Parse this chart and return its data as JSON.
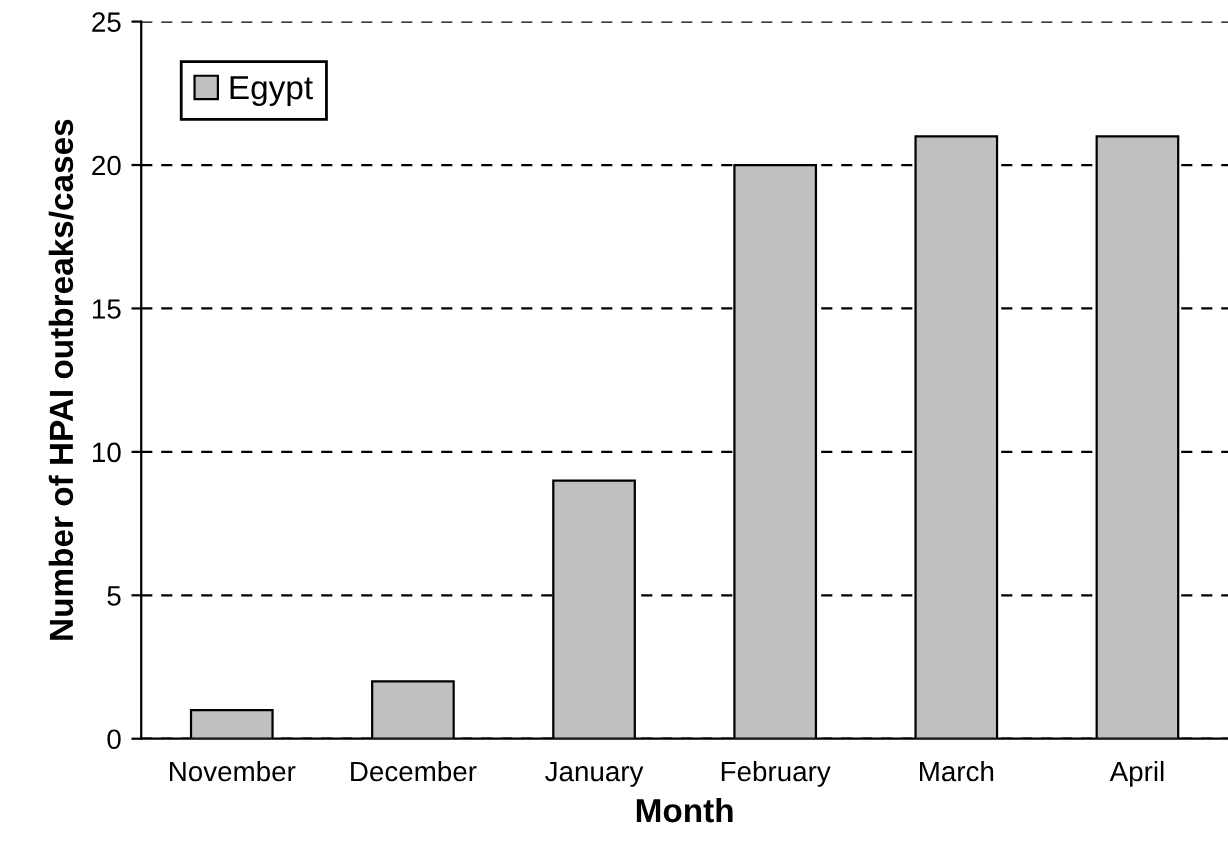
{
  "chart_data": {
    "type": "bar",
    "xlabel": "Month",
    "ylabel": "Number of HPAI outbreaks/cases",
    "categories": [
      "November",
      "December",
      "January",
      "February",
      "March",
      "April"
    ],
    "series": [
      {
        "name": "Egypt",
        "color": "#c0c0c0",
        "values": [
          1,
          2,
          9,
          20,
          21,
          21
        ]
      }
    ],
    "ylim": [
      0,
      25
    ],
    "yticks": [
      0,
      5,
      10,
      15,
      20,
      25
    ],
    "grid": "y",
    "legend": "top left"
  }
}
